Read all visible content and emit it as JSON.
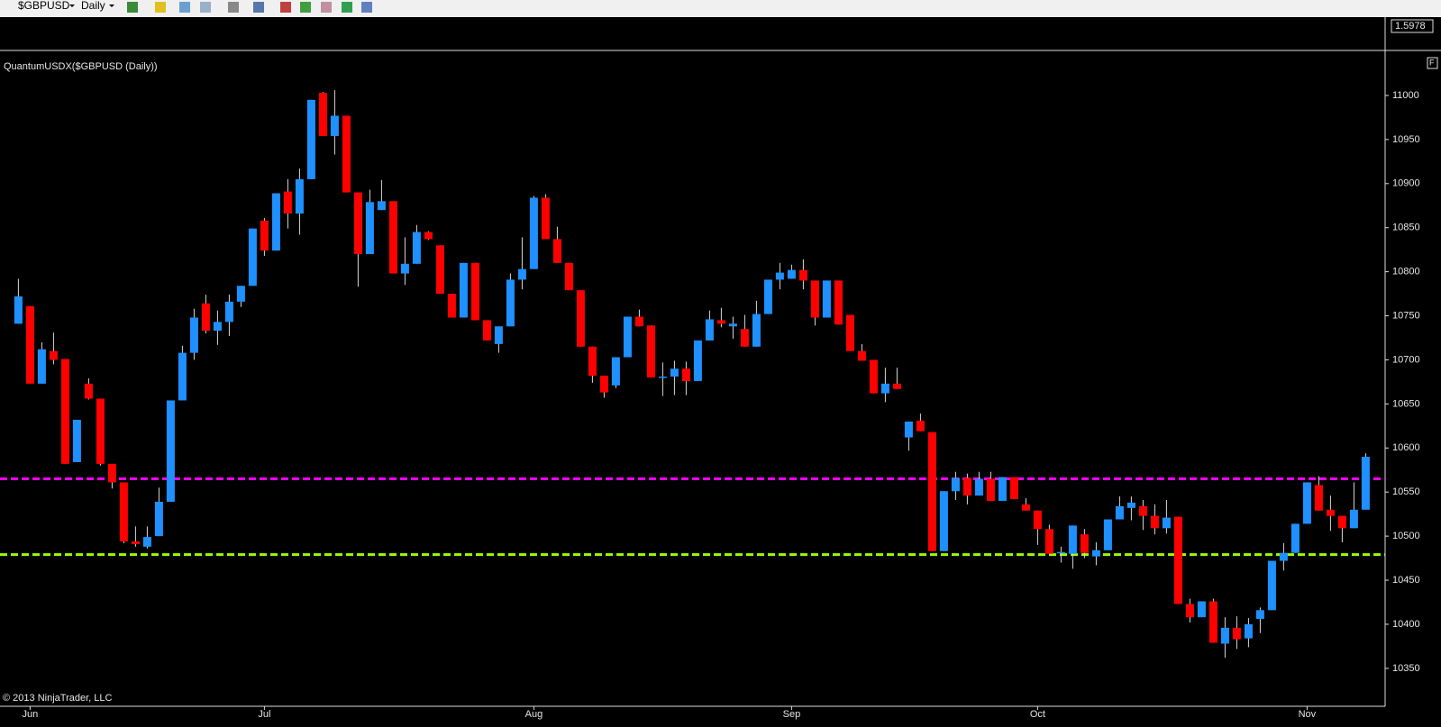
{
  "toolbar": {
    "symbol": "$GBPUSD",
    "interval": "Daily"
  },
  "price_marker": "1.5978",
  "panel_flag": "F",
  "copyright": "© 2013 NinjaTrader, LLC",
  "chart_data": {
    "type": "candlestick",
    "title": "QuantumUSDX($GBPUSD (Daily))",
    "categories": [
      null,
      "Jun",
      null,
      null,
      null,
      null,
      null,
      null,
      null,
      null,
      null,
      null,
      null,
      null,
      null,
      null,
      null,
      null,
      null,
      null,
      null,
      "Jul",
      null,
      null,
      null,
      null,
      null,
      null,
      null,
      null,
      null,
      null,
      null,
      null,
      null,
      null,
      null,
      null,
      null,
      null,
      null,
      null,
      null,
      null,
      "Aug",
      null,
      null,
      null,
      null,
      null,
      null,
      null,
      null,
      null,
      null,
      null,
      null,
      null,
      null,
      null,
      null,
      null,
      null,
      null,
      null,
      null,
      "Sep",
      null,
      null,
      null,
      null,
      null,
      null,
      null,
      null,
      null,
      null,
      null,
      null,
      null,
      null,
      null,
      null,
      null,
      null,
      null,
      null,
      "Oct",
      null,
      null,
      null,
      null,
      null,
      null,
      null,
      null,
      null,
      null,
      null,
      null,
      null,
      null,
      null,
      null,
      null,
      null,
      null,
      null,
      null,
      null,
      "Nov",
      null,
      null,
      null,
      null,
      null
    ],
    "open": [
      10741,
      10761,
      10673,
      10710,
      10701,
      10584,
      10673,
      10656,
      10582,
      10561,
      10494,
      10488,
      10500,
      10539,
      10654,
      10708,
      10764,
      10733,
      10743,
      10766,
      10784,
      10858,
      10824,
      10891,
      10866,
      10905,
      11003,
      10954,
      10977,
      10890,
      10820,
      10870,
      10880,
      10798,
      10809,
      10845,
      10830,
      10775,
      10748,
      10810,
      10745,
      10718,
      10738,
      10791,
      10803,
      10884,
      10837,
      10810,
      10779,
      10715,
      10682,
      10671,
      10703,
      10749,
      10739,
      10680,
      10681,
      10690,
      10676,
      10722,
      10745,
      10738,
      10735,
      10715,
      10752,
      10791,
      10792,
      10802,
      10790,
      10748,
      10790,
      10751,
      10710,
      10700,
      10662,
      10673,
      10612,
      10631,
      10618,
      10483,
      10551,
      10566,
      10546,
      10565,
      10540,
      10567,
      10536,
      10529,
      10508,
      10481,
      10480,
      10502,
      10477,
      10484,
      10519,
      10532,
      10534,
      10523,
      10509,
      10522,
      10423,
      10408,
      10426,
      10378,
      10396,
      10384,
      10406,
      10416,
      10472,
      10481,
      10514,
      10558,
      10530,
      10523,
      10509,
      10530
    ],
    "high": [
      10792,
      10761,
      10720,
      10731,
      10701,
      10632,
      10679,
      10656,
      10582,
      10561,
      10511,
      10511,
      10555,
      10654,
      10716,
      10758,
      10774,
      10756,
      10774,
      10784,
      10849,
      10861,
      10889,
      10905,
      10917,
      10995,
      11004,
      11006,
      10977,
      10890,
      10893,
      10904,
      10880,
      10839,
      10853,
      10846,
      10830,
      10775,
      10810,
      10810,
      10745,
      10738,
      10798,
      10839,
      10886,
      10888,
      10851,
      10810,
      10779,
      10715,
      10682,
      10703,
      10749,
      10757,
      10739,
      10697,
      10699,
      10698,
      10722,
      10756,
      10759,
      10749,
      10751,
      10767,
      10791,
      10810,
      10808,
      10814,
      10790,
      10790,
      10790,
      10751,
      10718,
      10700,
      10691,
      10691,
      10630,
      10639,
      10618,
      10551,
      10573,
      10571,
      10573,
      10573,
      10567,
      10567,
      10543,
      10529,
      10513,
      10488,
      10512,
      10508,
      10493,
      10519,
      10545,
      10545,
      10541,
      10536,
      10541,
      10522,
      10429,
      10426,
      10429,
      10408,
      10409,
      10407,
      10419,
      10472,
      10492,
      10514,
      10561,
      10568,
      10546,
      10523,
      10561,
      10594
    ],
    "low": [
      10741,
      10673,
      10673,
      10695,
      10582,
      10584,
      10655,
      10580,
      10554,
      10492,
      10488,
      10486,
      10500,
      10539,
      10654,
      10700,
      10730,
      10717,
      10727,
      10760,
      10784,
      10818,
      10824,
      10849,
      10842,
      10905,
      10954,
      10933,
      10890,
      10783,
      10820,
      10870,
      10798,
      10785,
      10809,
      10836,
      10775,
      10748,
      10748,
      10745,
      10722,
      10708,
      10738,
      10780,
      10803,
      10837,
      10810,
      10779,
      10715,
      10674,
      10657,
      10668,
      10703,
      10738,
      10680,
      10659,
      10660,
      10660,
      10676,
      10722,
      10737,
      10724,
      10715,
      10715,
      10752,
      10780,
      10792,
      10780,
      10739,
      10748,
      10740,
      10710,
      10699,
      10662,
      10652,
      10667,
      10597,
      10619,
      10483,
      10483,
      10541,
      10536,
      10546,
      10540,
      10540,
      10542,
      10529,
      10490,
      10480,
      10470,
      10463,
      10475,
      10467,
      10484,
      10519,
      10518,
      10507,
      10502,
      10503,
      10423,
      10402,
      10408,
      10379,
      10362,
      10372,
      10374,
      10390,
      10416,
      10461,
      10481,
      10514,
      10529,
      10506,
      10493,
      10509,
      10530
    ],
    "close": [
      10772,
      10673,
      10712,
      10700,
      10582,
      10632,
      10656,
      10582,
      10561,
      10494,
      10491,
      10499,
      10539,
      10654,
      10708,
      10748,
      10733,
      10743,
      10766,
      10784,
      10849,
      10824,
      10889,
      10866,
      10905,
      10995,
      10954,
      10977,
      10890,
      10820,
      10879,
      10880,
      10798,
      10809,
      10845,
      10837,
      10775,
      10748,
      10810,
      10745,
      10722,
      10738,
      10791,
      10803,
      10884,
      10837,
      10810,
      10779,
      10715,
      10682,
      10663,
      10703,
      10749,
      10738,
      10680,
      10681,
      10690,
      10676,
      10722,
      10746,
      10741,
      10741,
      10715,
      10752,
      10791,
      10799,
      10802,
      10790,
      10748,
      10790,
      10740,
      10710,
      10699,
      10662,
      10673,
      10667,
      10630,
      10619,
      10483,
      10551,
      10566,
      10546,
      10565,
      10540,
      10567,
      10542,
      10529,
      10508,
      10480,
      10482,
      10512,
      10481,
      10484,
      10519,
      10534,
      10538,
      10523,
      10509,
      10521,
      10423,
      10408,
      10426,
      10379,
      10396,
      10383,
      10400,
      10416,
      10472,
      10481,
      10514,
      10561,
      10529,
      10523,
      10509,
      10530,
      10590
    ],
    "up_color": "#1e90ff",
    "down_color": "#ff0000",
    "wick_color": "#d8d8d8",
    "horizontal_lines": [
      {
        "value": 10565,
        "color": "#ff00ff"
      },
      {
        "value": 10479,
        "color": "#99ff00"
      }
    ],
    "ylim": [
      10310,
      11048
    ],
    "yticks": [
      10350,
      10400,
      10450,
      10500,
      10550,
      10600,
      10650,
      10700,
      10750,
      10800,
      10850,
      10900,
      10950,
      11000
    ]
  }
}
